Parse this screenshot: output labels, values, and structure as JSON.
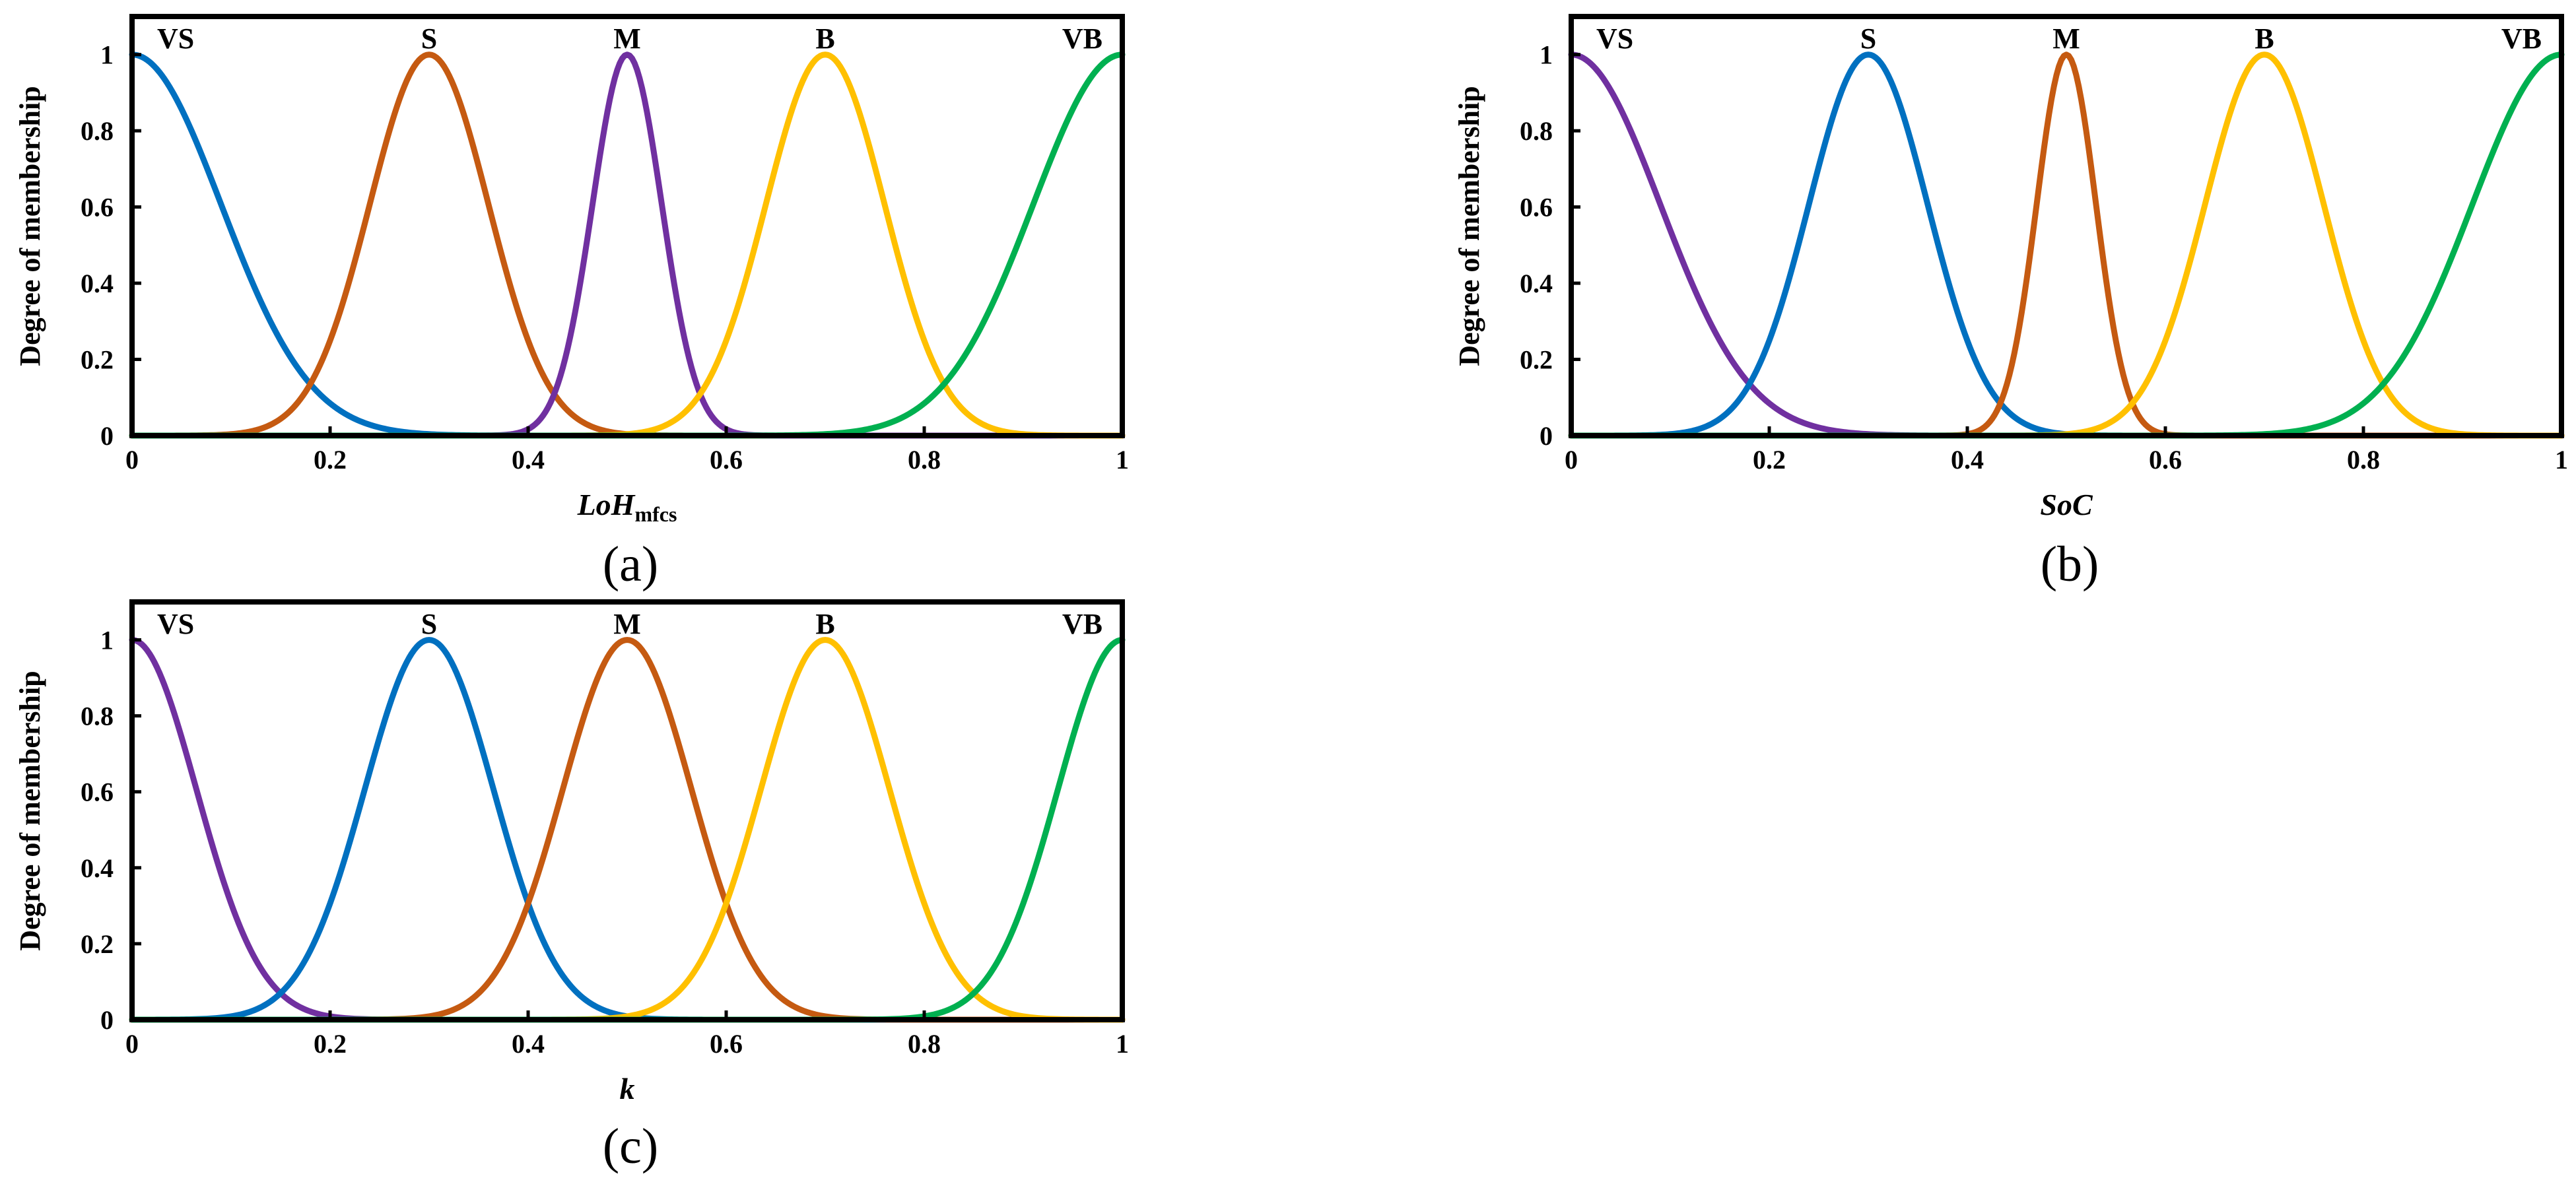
{
  "chart_data": [
    {
      "id": "a",
      "type": "line",
      "panel_label": "(a)",
      "xlabel": {
        "main": "LoH",
        "sub": "mfcs"
      },
      "ylabel": "Degree of membership",
      "xlim": [
        0,
        1
      ],
      "ylim": [
        0,
        1.1
      ],
      "xticks": [
        "0",
        "0.2",
        "0.4",
        "0.6",
        "0.8",
        "1"
      ],
      "yticks": [
        "0",
        "0.2",
        "0.4",
        "0.6",
        "0.8",
        "1"
      ],
      "series": [
        {
          "name": "VS",
          "mean": 0.0,
          "sigma": 0.09,
          "color": "#0070C0"
        },
        {
          "name": "S",
          "mean": 0.3,
          "sigma": 0.06,
          "color": "#C55A11"
        },
        {
          "name": "M",
          "mean": 0.5,
          "sigma": 0.035,
          "color": "#7030A0"
        },
        {
          "name": "B",
          "mean": 0.7,
          "sigma": 0.06,
          "color": "#FFC000"
        },
        {
          "name": "VB",
          "mean": 1.0,
          "sigma": 0.09,
          "color": "#00B050"
        }
      ]
    },
    {
      "id": "b",
      "type": "line",
      "panel_label": "(b)",
      "xlabel": {
        "main": "SoC",
        "sub": ""
      },
      "ylabel": "Degree of membership",
      "xlim": [
        0,
        1
      ],
      "ylim": [
        0,
        1.1
      ],
      "xticks": [
        "0",
        "0.2",
        "0.4",
        "0.6",
        "0.8",
        "1"
      ],
      "yticks": [
        "0",
        "0.2",
        "0.4",
        "0.6",
        "0.8",
        "1"
      ],
      "series": [
        {
          "name": "VS",
          "mean": 0.0,
          "sigma": 0.09,
          "color": "#7030A0"
        },
        {
          "name": "S",
          "mean": 0.3,
          "sigma": 0.06,
          "color": "#0070C0"
        },
        {
          "name": "M",
          "mean": 0.5,
          "sigma": 0.03,
          "color": "#C55A11"
        },
        {
          "name": "B",
          "mean": 0.7,
          "sigma": 0.06,
          "color": "#FFC000"
        },
        {
          "name": "VB",
          "mean": 1.0,
          "sigma": 0.09,
          "color": "#00B050"
        }
      ]
    },
    {
      "id": "c",
      "type": "line",
      "panel_label": "(c)",
      "xlabel": {
        "main": "k",
        "sub": ""
      },
      "ylabel": "Degree of membership",
      "xlim": [
        0,
        1
      ],
      "ylim": [
        0,
        1.1
      ],
      "xticks": [
        "0",
        "0.2",
        "0.4",
        "0.6",
        "0.8",
        "1"
      ],
      "yticks": [
        "0",
        "0.2",
        "0.4",
        "0.6",
        "0.8",
        "1"
      ],
      "series": [
        {
          "name": "VS",
          "mean": 0.0,
          "sigma": 0.065,
          "color": "#7030A0"
        },
        {
          "name": "S",
          "mean": 0.3,
          "sigma": 0.065,
          "color": "#0070C0"
        },
        {
          "name": "M",
          "mean": 0.5,
          "sigma": 0.065,
          "color": "#C55A11"
        },
        {
          "name": "B",
          "mean": 0.7,
          "sigma": 0.065,
          "color": "#FFC000"
        },
        {
          "name": "VB",
          "mean": 1.0,
          "sigma": 0.065,
          "color": "#00B050"
        }
      ]
    }
  ]
}
